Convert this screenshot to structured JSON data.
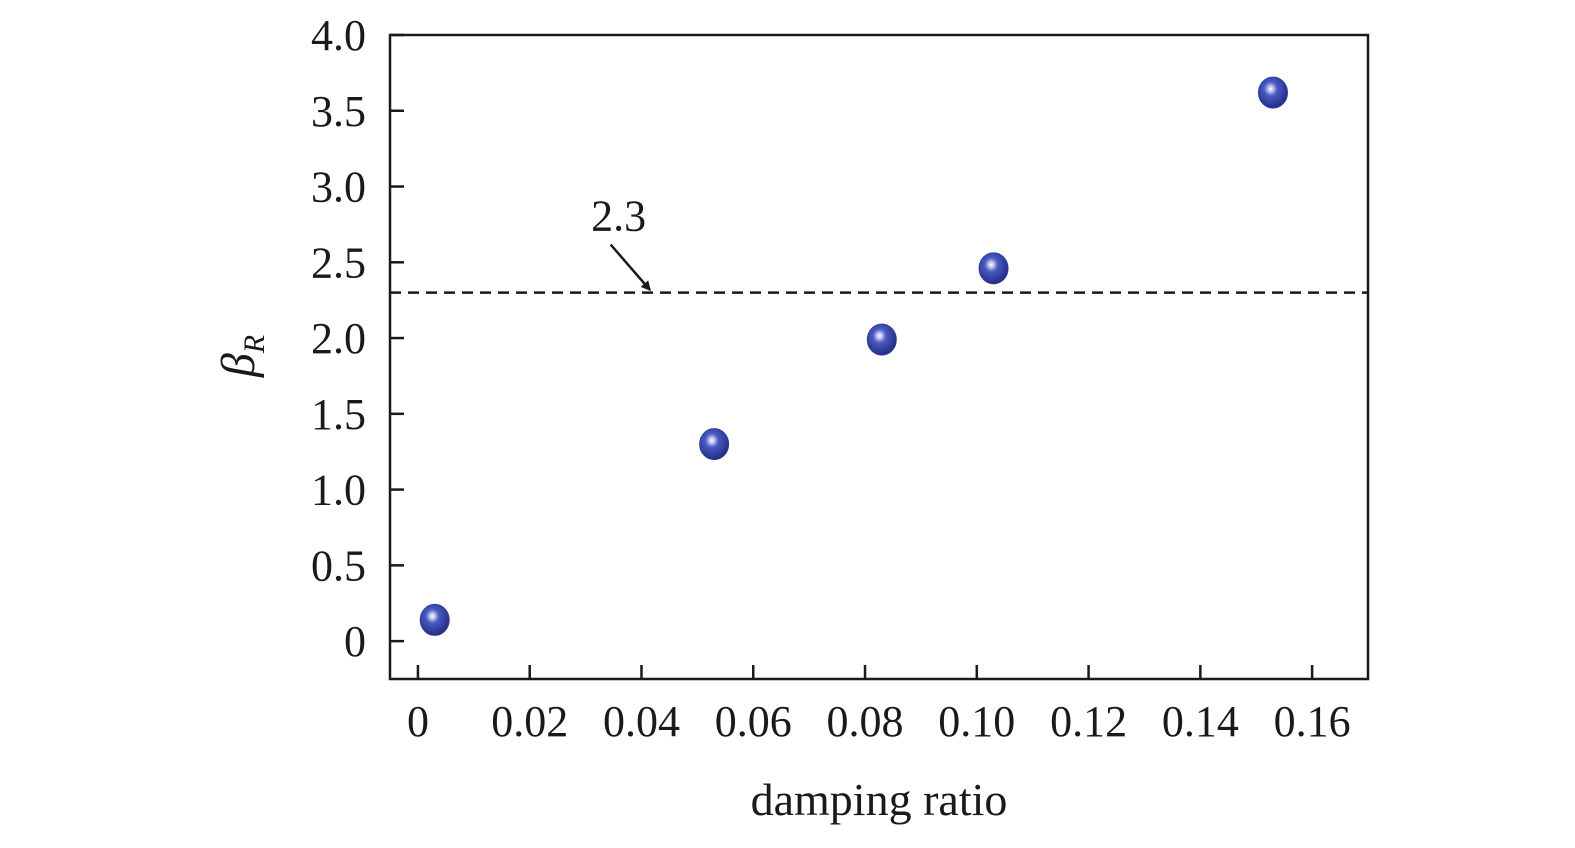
{
  "chart_data": {
    "type": "scatter",
    "title": "",
    "xlabel": "damping ratio",
    "ylabel": {
      "symbol": "β",
      "subscript": "R"
    },
    "xlim": [
      -0.005,
      0.17
    ],
    "ylim": [
      -0.25,
      4.0
    ],
    "x_ticks": [
      0,
      0.02,
      0.04,
      0.06,
      0.08,
      0.1,
      0.12,
      0.14,
      0.16
    ],
    "x_tick_labels": [
      "0",
      "0.02",
      "0.04",
      "0.06",
      "0.08",
      "0.10",
      "0.12",
      "0.14",
      "0.16"
    ],
    "y_ticks": [
      0,
      0.5,
      1.0,
      1.5,
      2.0,
      2.5,
      3.0,
      3.5,
      4.0
    ],
    "y_tick_labels": [
      "0",
      "0.5",
      "1.0",
      "1.5",
      "2.0",
      "2.5",
      "3.0",
      "3.5",
      "4.0"
    ],
    "grid": false,
    "legend": "none",
    "series": [
      {
        "marker_color": "#2f3e9e",
        "points": [
          {
            "x": 0.003,
            "y": 0.14
          },
          {
            "x": 0.053,
            "y": 1.3
          },
          {
            "x": 0.083,
            "y": 1.99
          },
          {
            "x": 0.103,
            "y": 2.46
          },
          {
            "x": 0.153,
            "y": 3.62
          }
        ]
      }
    ],
    "reference_line": {
      "y": 2.3,
      "style": "dashed",
      "label": "2.3",
      "arrow_x": 0.042
    }
  }
}
